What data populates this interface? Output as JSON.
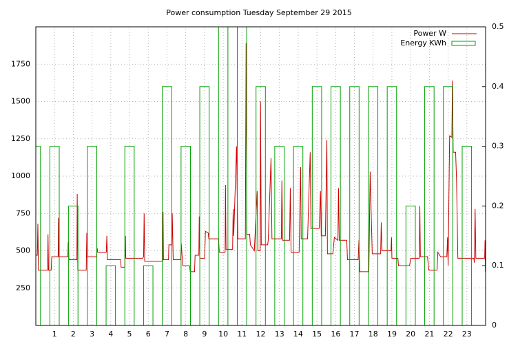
{
  "chart_data": {
    "type": "line",
    "title": "Power consumption Tuesday September 29 2015",
    "xlim": [
      0,
      24
    ],
    "xticks": [
      1,
      2,
      3,
      4,
      5,
      6,
      7,
      8,
      9,
      10,
      11,
      12,
      13,
      14,
      15,
      16,
      17,
      18,
      19,
      20,
      21,
      22,
      23
    ],
    "ylim": [
      0,
      2000
    ],
    "yticks": [
      250,
      500,
      750,
      1000,
      1250,
      1500,
      1750
    ],
    "y2lim": [
      0,
      0.5
    ],
    "y2ticks": [
      0,
      0.1,
      0.2,
      0.3,
      0.4,
      0.5
    ],
    "grid": true,
    "legend": "top right",
    "series": [
      {
        "name": "Power W",
        "color": "#cc0000",
        "x": [
          0,
          0.08,
          0.11,
          0.14,
          0.63,
          0.65,
          0.68,
          0.82,
          0.85,
          1.19,
          1.21,
          1.23,
          1.71,
          1.73,
          1.77,
          2.19,
          2.21,
          2.24,
          2.69,
          2.72,
          2.75,
          3.24,
          3.27,
          3.3,
          3.76,
          3.79,
          3.82,
          4.53,
          4.55,
          4.75,
          4.78,
          4.8,
          5.7,
          5.75,
          5.78,
          5.81,
          6.77,
          6.79,
          6.81,
          7.08,
          7.1,
          7.26,
          7.28,
          7.33,
          7.73,
          7.76,
          7.84,
          8.2,
          8.24,
          8.47,
          8.5,
          8.7,
          8.72,
          8.75,
          9.01,
          9.05,
          9.2,
          9.23,
          9.75,
          9.79,
          10.1,
          10.12,
          10.15,
          10.5,
          10.53,
          10.56,
          10.71,
          10.78,
          11.18,
          11.22,
          11.26,
          11.41,
          11.45,
          11.66,
          11.81,
          11.85,
          11.97,
          11.99,
          12.03,
          12.37,
          12.4,
          12.55,
          12.6,
          13.1,
          13.13,
          13.17,
          13.54,
          13.58,
          13.62,
          14.05,
          14.13,
          14.16,
          14.5,
          14.64,
          14.68,
          15.12,
          15.19,
          15.23,
          15.45,
          15.53,
          15.56,
          15.85,
          15.93,
          16.12,
          16.15,
          16.19,
          16.59,
          16.63,
          17.2,
          17.24,
          17.29,
          17.77,
          17.84,
          17.95,
          18.4,
          18.43,
          18.47,
          18.95,
          18.98,
          19.0,
          19.32,
          19.35,
          19.94,
          20.01,
          20.46,
          20.49,
          20.52,
          20.9,
          20.97,
          21.41,
          21.45,
          21.6,
          21.93,
          21.97,
          22.0,
          22.08,
          22.2,
          22.23,
          22.27,
          22.4,
          22.45,
          22.52,
          23.37,
          23.4,
          23.44,
          23.48,
          23.95,
          23.97,
          23.99
        ],
        "values": [
          470,
          470,
          680,
          370,
          370,
          610,
          370,
          370,
          460,
          460,
          720,
          460,
          460,
          560,
          440,
          440,
          880,
          370,
          370,
          620,
          460,
          460,
          520,
          490,
          490,
          600,
          440,
          440,
          390,
          390,
          600,
          450,
          450,
          460,
          750,
          430,
          430,
          760,
          440,
          440,
          540,
          540,
          750,
          440,
          440,
          550,
          400,
          400,
          360,
          360,
          470,
          470,
          730,
          450,
          450,
          630,
          620,
          580,
          580,
          490,
          490,
          940,
          510,
          510,
          780,
          600,
          1200,
          580,
          580,
          1890,
          610,
          610,
          540,
          500,
          900,
          500,
          500,
          1500,
          540,
          540,
          570,
          1120,
          580,
          580,
          970,
          570,
          570,
          920,
          490,
          490,
          1060,
          580,
          580,
          1160,
          650,
          650,
          900,
          600,
          600,
          1240,
          480,
          480,
          590,
          570,
          920,
          570,
          570,
          440,
          440,
          570,
          360,
          360,
          1030,
          480,
          480,
          690,
          500,
          500,
          590,
          450,
          450,
          400,
          400,
          450,
          450,
          800,
          460,
          460,
          370,
          370,
          490,
          460,
          460,
          590,
          400,
          1270,
          1260,
          1640,
          1160,
          1160,
          970,
          450,
          450,
          420,
          780,
          450,
          450,
          570,
          360
        ]
      },
      {
        "name": "Energy KWh",
        "type": "bar",
        "axis": "y2",
        "color": "#00a000",
        "x": [
          0,
          1,
          2,
          3,
          4,
          5,
          6,
          7,
          8,
          9,
          10,
          11,
          12,
          13,
          14,
          15,
          16,
          17,
          18,
          19,
          20,
          21,
          22,
          23
        ],
        "values": [
          0.3,
          0.3,
          0.2,
          0.3,
          0.1,
          0.3,
          0.1,
          0.4,
          0.3,
          0.4,
          0.5,
          0.5,
          0.4,
          0.3,
          0.3,
          0.4,
          0.4,
          0.4,
          0.4,
          0.4,
          0.2,
          0.4,
          0.4,
          0.3
        ]
      }
    ]
  }
}
